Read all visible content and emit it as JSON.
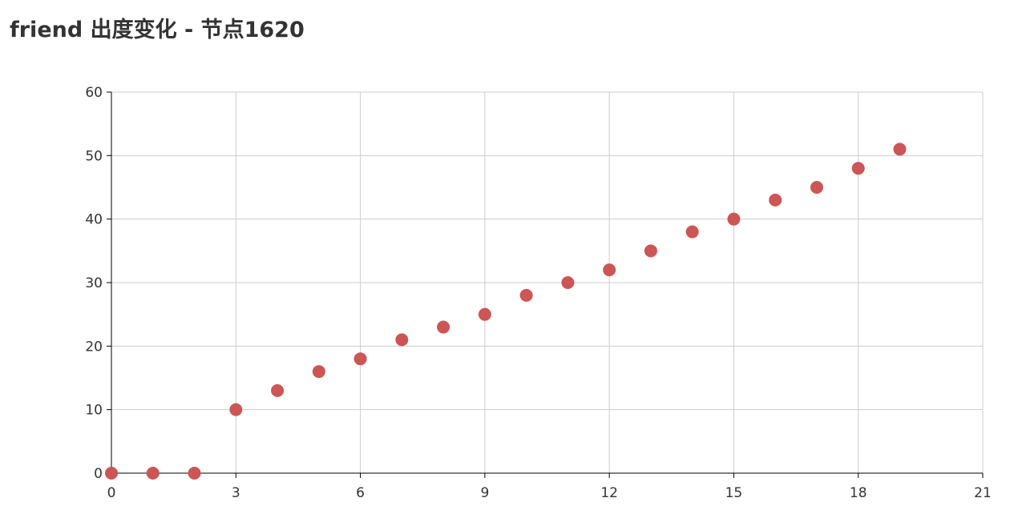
{
  "chart_data": {
    "type": "scatter",
    "title": "friend 出度变化 - 节点1620",
    "xlabel": "",
    "ylabel": "",
    "xlim": [
      0,
      21
    ],
    "ylim": [
      0,
      60
    ],
    "x_ticks": [
      0,
      3,
      6,
      9,
      12,
      15,
      18,
      21
    ],
    "y_ticks": [
      0,
      10,
      20,
      30,
      40,
      50,
      60
    ],
    "grid": true,
    "marker_color": "#cc5555",
    "grid_color": "#cccccc",
    "x": [
      0,
      1,
      2,
      3,
      4,
      5,
      6,
      7,
      8,
      9,
      10,
      11,
      12,
      13,
      14,
      15,
      16,
      17,
      18,
      19
    ],
    "y": [
      0,
      0,
      0,
      10,
      13,
      16,
      18,
      21,
      23,
      25,
      28,
      30,
      32,
      35,
      38,
      40,
      43,
      45,
      48,
      51
    ]
  }
}
